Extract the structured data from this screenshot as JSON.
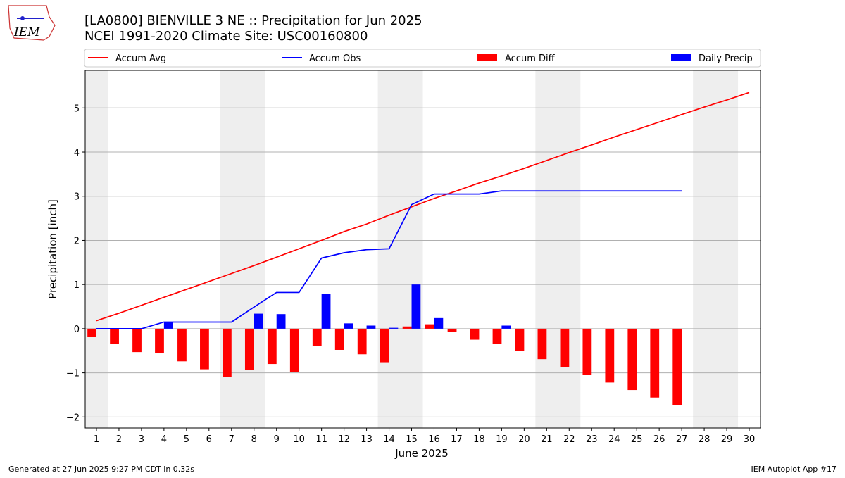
{
  "chart_data": {
    "type": "combo",
    "title": "[LA0800] BIENVILLE 3 NE :: Precipitation for Jun 2025",
    "subtitle": "NCEI 1991-2020 Climate Site: USC00160800",
    "logo_text": "IEM",
    "xlabel": "June 2025",
    "ylabel": "Precipitation [inch]",
    "footer_left": "Generated at 27 Jun 2025 9:27 PM CDT in 0.32s",
    "footer_right": "IEM Autoplot App #17",
    "x": [
      1,
      2,
      3,
      4,
      5,
      6,
      7,
      8,
      9,
      10,
      11,
      12,
      13,
      14,
      15,
      16,
      17,
      18,
      19,
      20,
      21,
      22,
      23,
      24,
      25,
      26,
      27,
      28,
      29,
      30
    ],
    "xlim": [
      0.5,
      30.5
    ],
    "xticks": [
      1,
      2,
      3,
      4,
      5,
      6,
      7,
      8,
      9,
      10,
      11,
      12,
      13,
      14,
      15,
      16,
      17,
      18,
      19,
      20,
      21,
      22,
      23,
      24,
      25,
      26,
      27,
      28,
      29,
      30
    ],
    "ylim": [
      -2.25,
      5.85
    ],
    "yticks": [
      {
        "value": -2,
        "label": "−2"
      },
      {
        "value": -1,
        "label": "−1"
      },
      0,
      1,
      2,
      3,
      4,
      5
    ],
    "grid": true,
    "shaded_ranges": [
      [
        0.5,
        1.5
      ],
      [
        6.5,
        8.5
      ],
      [
        13.5,
        15.5
      ],
      [
        20.5,
        22.5
      ],
      [
        27.5,
        29.5
      ]
    ],
    "series": [
      {
        "name": "Accum Avg",
        "kind": "line",
        "color": "#ff0000",
        "values": [
          0.18,
          0.35,
          0.53,
          0.71,
          0.89,
          1.07,
          1.25,
          1.43,
          1.62,
          1.81,
          2.0,
          2.2,
          2.37,
          2.57,
          2.76,
          2.95,
          3.12,
          3.3,
          3.46,
          3.63,
          3.81,
          3.99,
          4.16,
          4.34,
          4.51,
          4.68,
          4.85,
          5.02,
          5.18,
          5.35
        ]
      },
      {
        "name": "Accum Obs",
        "kind": "line",
        "color": "#0000ff",
        "values": [
          0,
          0,
          0,
          0.15,
          0.15,
          0.15,
          0.15,
          0.49,
          0.82,
          0.82,
          1.6,
          1.72,
          1.79,
          1.81,
          2.81,
          3.05,
          3.05,
          3.05,
          3.12,
          3.12,
          3.12,
          3.12,
          3.12,
          3.12,
          3.12,
          3.12,
          3.12,
          null,
          null,
          null
        ]
      },
      {
        "name": "Accum Diff",
        "kind": "bar",
        "color": "#ff0000",
        "values": [
          -0.18,
          -0.35,
          -0.53,
          -0.56,
          -0.74,
          -0.92,
          -1.1,
          -0.94,
          -0.8,
          -0.99,
          -0.4,
          -0.48,
          -0.58,
          -0.76,
          0.05,
          0.1,
          -0.07,
          -0.25,
          -0.34,
          -0.51,
          -0.69,
          -0.87,
          -1.04,
          -1.22,
          -1.39,
          -1.56,
          -1.73,
          null,
          null,
          null
        ]
      },
      {
        "name": "Daily Precip",
        "kind": "bar",
        "color": "#0000ff",
        "values": [
          0,
          0,
          0,
          0.15,
          0,
          0,
          0,
          0.34,
          0.33,
          0,
          0.78,
          0.12,
          0.07,
          0.02,
          1.0,
          0.24,
          0,
          0,
          0.07,
          0,
          0,
          0,
          0,
          0,
          0,
          0,
          0,
          null,
          null,
          null
        ]
      }
    ]
  }
}
